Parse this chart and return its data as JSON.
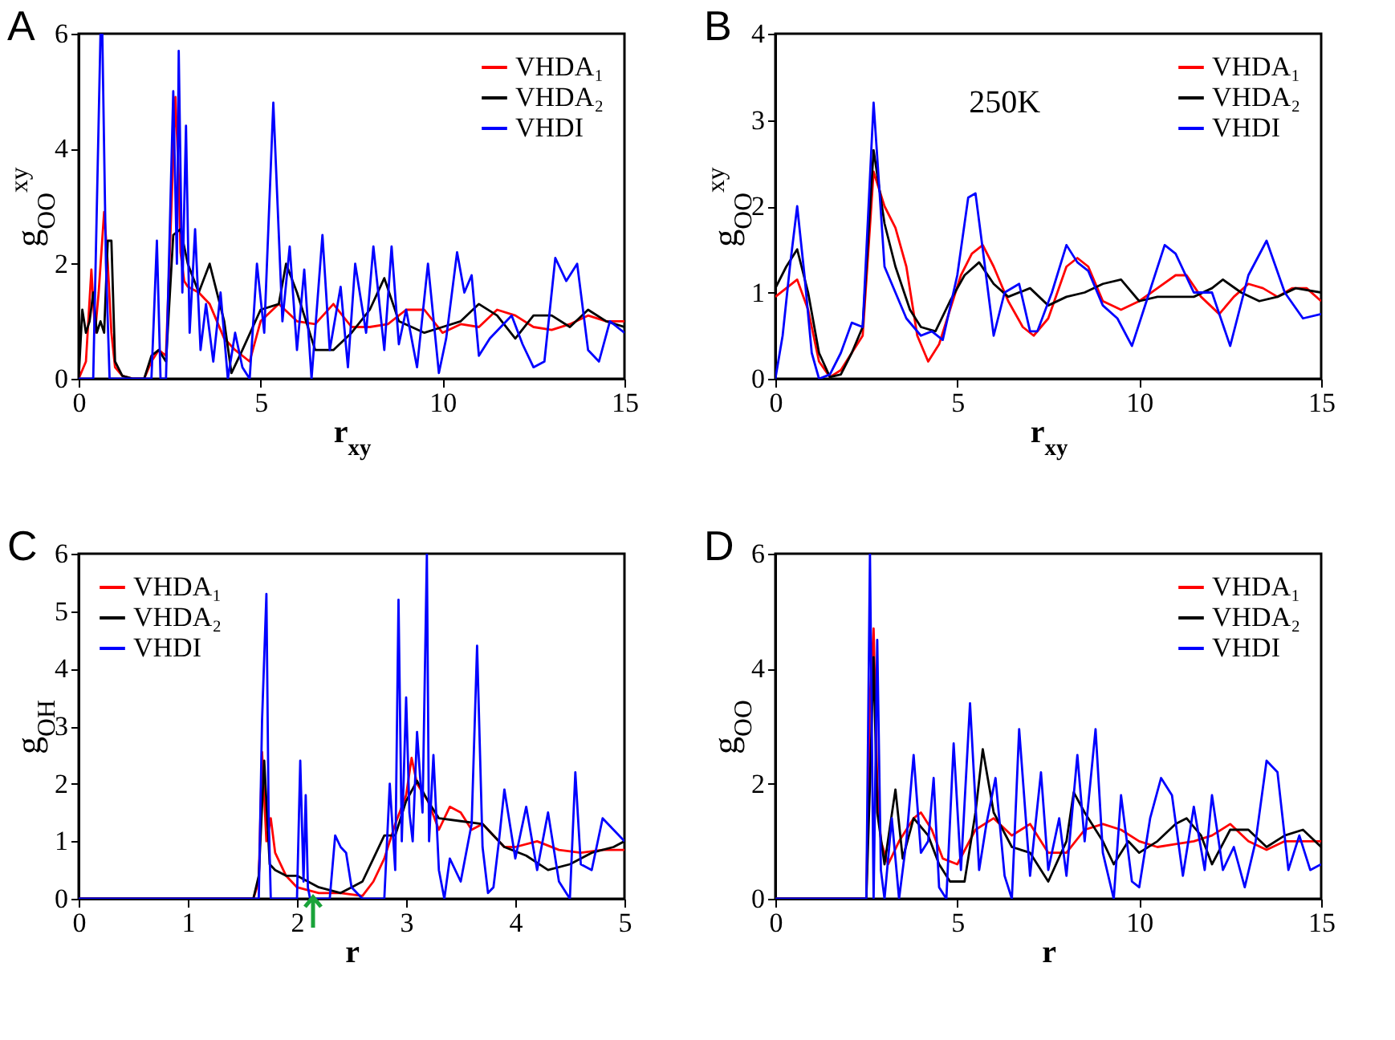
{
  "chart_data": [
    {
      "type": "line",
      "title": "A",
      "xlabel": "r$_{xy}$",
      "ylabel": "g$_{OO}$$^{xy}$",
      "xlim": [
        0,
        15
      ],
      "ylim": [
        0,
        6
      ],
      "xticks": [
        0,
        5,
        10,
        15
      ],
      "yticks": [
        0,
        2,
        4,
        6
      ],
      "legend": "top right",
      "series": [
        {
          "name": "VHDA₁",
          "color": "#ff0000",
          "x": [
            0,
            0.2,
            0.35,
            0.45,
            0.55,
            0.7,
            0.8,
            0.9,
            1.0,
            1.2,
            1.5,
            1.8,
            2.0,
            2.2,
            2.4,
            2.66,
            2.75,
            2.8,
            2.9,
            3.0,
            3.3,
            3.6,
            4.0,
            4.3,
            4.7,
            5.0,
            5.5,
            6.0,
            6.5,
            7.0,
            7.5,
            8.0,
            8.5,
            9.0,
            9.5,
            10.0,
            10.5,
            11.0,
            11.5,
            12.0,
            12.5,
            13.0,
            13.5,
            14.0,
            14.5,
            15
          ],
          "values": [
            0,
            0.3,
            1.9,
            0.8,
            1.5,
            2.9,
            2.0,
            0.8,
            0.2,
            0.05,
            0,
            0,
            0.3,
            0.5,
            0.4,
            4.9,
            3.5,
            2.2,
            1.7,
            1.6,
            1.5,
            1.3,
            0.7,
            0.5,
            0.3,
            1.0,
            1.3,
            1.0,
            0.95,
            1.3,
            0.9,
            0.9,
            0.95,
            1.2,
            1.2,
            0.8,
            0.95,
            0.9,
            1.2,
            1.1,
            0.9,
            0.85,
            0.95,
            1.1,
            1.0,
            1.0
          ]
        },
        {
          "name": "VHDA₂",
          "color": "#000000",
          "x": [
            0,
            0.1,
            0.2,
            0.3,
            0.4,
            0.5,
            0.6,
            0.7,
            0.8,
            0.9,
            1.0,
            1.2,
            1.5,
            1.8,
            2.0,
            2.2,
            2.4,
            2.6,
            2.8,
            3.0,
            3.3,
            3.6,
            4.0,
            4.2,
            4.5,
            5.0,
            5.5,
            5.7,
            6.0,
            6.5,
            7.0,
            7.5,
            8.0,
            8.4,
            8.8,
            9.5,
            10.0,
            10.5,
            11.0,
            11.5,
            12.0,
            12.5,
            13.0,
            13.5,
            14.0,
            14.5,
            15
          ],
          "values": [
            0,
            1.2,
            0.8,
            1.0,
            1.5,
            0.8,
            1.0,
            0.8,
            2.4,
            2.4,
            0.3,
            0.05,
            0,
            0,
            0.4,
            0.5,
            0.3,
            2.5,
            2.6,
            2.0,
            1.5,
            2.0,
            1.0,
            0.1,
            0.5,
            1.2,
            1.3,
            2.0,
            1.5,
            0.5,
            0.5,
            0.8,
            1.2,
            1.75,
            1.0,
            0.8,
            0.9,
            1.0,
            1.3,
            1.1,
            0.7,
            1.1,
            1.1,
            0.9,
            1.2,
            1.0,
            0.9
          ]
        },
        {
          "name": "VHDI",
          "color": "#0000ff",
          "x": [
            0,
            0.4,
            0.5,
            0.6,
            0.65,
            0.75,
            0.85,
            1.0,
            1.5,
            2.0,
            2.15,
            2.25,
            2.4,
            2.6,
            2.7,
            2.75,
            2.85,
            2.95,
            3.05,
            3.2,
            3.35,
            3.5,
            3.7,
            3.9,
            4.1,
            4.3,
            4.5,
            4.7,
            4.9,
            5.1,
            5.35,
            5.6,
            5.8,
            6.0,
            6.2,
            6.4,
            6.7,
            6.9,
            7.2,
            7.4,
            7.6,
            7.9,
            8.1,
            8.4,
            8.6,
            8.8,
            9.0,
            9.3,
            9.6,
            9.9,
            10.1,
            10.4,
            10.6,
            10.8,
            11.0,
            11.3,
            11.6,
            11.9,
            12.2,
            12.5,
            12.8,
            13.1,
            13.4,
            13.7,
            14.0,
            14.3,
            14.6,
            15
          ],
          "values": [
            0,
            0,
            3,
            6,
            6,
            2,
            0,
            0,
            0,
            0,
            2.4,
            0,
            0,
            5,
            2,
            5.7,
            1.5,
            4.4,
            0.8,
            2.6,
            0.5,
            1.3,
            0.3,
            1.5,
            0,
            0.8,
            0.2,
            0,
            2.0,
            0.8,
            4.8,
            1.0,
            2.3,
            0.5,
            1.9,
            0,
            2.5,
            0.5,
            1.6,
            0.2,
            2.0,
            0.8,
            2.3,
            0.5,
            2.3,
            0.6,
            1.2,
            0.2,
            2.0,
            0.1,
            0.7,
            2.2,
            1.5,
            1.8,
            0.4,
            0.7,
            0.9,
            1.1,
            0.6,
            0.2,
            0.3,
            2.1,
            1.7,
            2.0,
            0.5,
            0.3,
            1.0,
            0.8
          ]
        }
      ]
    },
    {
      "type": "line",
      "title": "B",
      "xlabel": "r$_{xy}$",
      "ylabel": "g$_{OO}$$^{xy}$",
      "xlim": [
        0,
        15
      ],
      "ylim": [
        0,
        4
      ],
      "xticks": [
        0,
        5,
        10,
        15
      ],
      "yticks": [
        0,
        1,
        2,
        3,
        4
      ],
      "legend": "top right",
      "annotations": [
        "250K"
      ],
      "series": [
        {
          "name": "VHDA₁",
          "color": "#ff0000",
          "x": [
            0,
            0.3,
            0.6,
            0.9,
            1.2,
            1.5,
            1.8,
            2.1,
            2.4,
            2.7,
            3.0,
            3.3,
            3.6,
            3.9,
            4.2,
            4.5,
            4.8,
            5.1,
            5.4,
            5.7,
            6.0,
            6.4,
            6.8,
            7.1,
            7.5,
            8.0,
            8.3,
            8.6,
            9.0,
            9.5,
            10.0,
            10.5,
            11.0,
            11.3,
            11.7,
            12.2,
            12.6,
            13.0,
            13.4,
            13.8,
            14.2,
            14.6,
            15
          ],
          "values": [
            0.95,
            1.05,
            1.15,
            0.8,
            0.2,
            0.02,
            0.1,
            0.3,
            0.5,
            2.4,
            2.0,
            1.75,
            1.3,
            0.5,
            0.2,
            0.4,
            0.8,
            1.2,
            1.45,
            1.55,
            1.3,
            0.9,
            0.6,
            0.5,
            0.7,
            1.3,
            1.4,
            1.3,
            0.9,
            0.8,
            0.9,
            1.05,
            1.2,
            1.2,
            0.95,
            0.75,
            0.95,
            1.1,
            1.05,
            0.95,
            1.05,
            1.05,
            0.9
          ]
        },
        {
          "name": "VHDA₂",
          "color": "#000000",
          "x": [
            0,
            0.3,
            0.6,
            0.9,
            1.2,
            1.5,
            1.8,
            2.1,
            2.4,
            2.7,
            3.0,
            3.3,
            3.7,
            4.0,
            4.4,
            4.8,
            5.2,
            5.6,
            6.0,
            6.4,
            7.0,
            7.5,
            8.0,
            8.5,
            9.0,
            9.5,
            10.0,
            10.5,
            11.0,
            11.5,
            12.0,
            12.3,
            12.8,
            13.3,
            13.8,
            14.3,
            15
          ],
          "values": [
            1.05,
            1.3,
            1.5,
            1.0,
            0.3,
            0.02,
            0.05,
            0.3,
            0.6,
            2.65,
            1.8,
            1.3,
            0.8,
            0.6,
            0.55,
            0.9,
            1.2,
            1.35,
            1.1,
            0.95,
            1.05,
            0.85,
            0.95,
            1.0,
            1.1,
            1.15,
            0.9,
            0.95,
            0.95,
            0.95,
            1.05,
            1.15,
            1.0,
            0.9,
            0.95,
            1.05,
            1.0
          ]
        },
        {
          "name": "VHDI",
          "color": "#0000ff",
          "x": [
            0,
            0.2,
            0.4,
            0.6,
            0.8,
            1.0,
            1.2,
            1.5,
            1.8,
            2.1,
            2.4,
            2.7,
            3.0,
            3.3,
            3.6,
            4.0,
            4.3,
            4.6,
            5.0,
            5.3,
            5.5,
            5.7,
            6.0,
            6.3,
            6.7,
            7.0,
            7.2,
            7.6,
            8.0,
            8.3,
            8.6,
            9.0,
            9.4,
            9.8,
            10.2,
            10.7,
            11.0,
            11.5,
            12.0,
            12.5,
            13.0,
            13.5,
            14.0,
            14.5,
            15
          ],
          "values": [
            0,
            0.5,
            1.3,
            2.0,
            1.2,
            0.3,
            0,
            0.05,
            0.3,
            0.65,
            0.6,
            3.2,
            1.3,
            1.0,
            0.7,
            0.5,
            0.55,
            0.45,
            1.2,
            2.1,
            2.15,
            1.5,
            0.5,
            1.0,
            1.1,
            0.55,
            0.55,
            1.0,
            1.55,
            1.35,
            1.25,
            0.85,
            0.7,
            0.38,
            0.9,
            1.55,
            1.45,
            1.0,
            1.0,
            0.38,
            1.2,
            1.6,
            1.0,
            0.7,
            0.75
          ]
        }
      ]
    },
    {
      "type": "line",
      "title": "C",
      "xlabel": "r",
      "ylabel": "g$_{OH}$",
      "xlim": [
        0,
        5
      ],
      "ylim": [
        0,
        6
      ],
      "xticks": [
        0,
        1,
        2,
        3,
        4,
        5
      ],
      "yticks": [
        0,
        1,
        2,
        3,
        4,
        5,
        6
      ],
      "legend": "top left",
      "series": [
        {
          "name": "VHDA₁",
          "color": "#ff0000",
          "x": [
            0,
            1.6,
            1.65,
            1.68,
            1.72,
            1.76,
            1.8,
            1.9,
            2.0,
            2.2,
            2.4,
            2.6,
            2.7,
            2.8,
            2.9,
            3.0,
            3.05,
            3.1,
            3.2,
            3.3,
            3.4,
            3.5,
            3.6,
            3.7,
            3.8,
            3.9,
            4.0,
            4.2,
            4.4,
            4.6,
            4.8,
            5
          ],
          "values": [
            0,
            0,
            0.3,
            2.55,
            1.0,
            1.4,
            0.8,
            0.4,
            0.2,
            0.1,
            0.1,
            0.05,
            0.3,
            0.7,
            1.3,
            1.8,
            2.45,
            2.0,
            1.7,
            1.2,
            1.6,
            1.5,
            1.2,
            1.3,
            1.1,
            0.9,
            0.9,
            1.0,
            0.85,
            0.8,
            0.85,
            0.85
          ]
        },
        {
          "name": "VHDA₂",
          "color": "#000000",
          "x": [
            0,
            1.6,
            1.65,
            1.7,
            1.75,
            1.8,
            1.9,
            2.0,
            2.1,
            2.2,
            2.4,
            2.5,
            2.6,
            2.7,
            2.8,
            2.9,
            3.0,
            3.1,
            3.2,
            3.3,
            3.5,
            3.7,
            3.9,
            4.1,
            4.3,
            4.5,
            4.7,
            4.9,
            5
          ],
          "values": [
            0,
            0,
            0.4,
            2.4,
            0.6,
            0.5,
            0.4,
            0.4,
            0.3,
            0.2,
            0.1,
            0.2,
            0.3,
            0.7,
            1.1,
            1.1,
            1.7,
            2.05,
            1.7,
            1.4,
            1.35,
            1.3,
            0.9,
            0.75,
            0.5,
            0.6,
            0.8,
            0.9,
            1.0
          ]
        },
        {
          "name": "VHDI",
          "color": "#0000ff",
          "x": [
            0,
            1.65,
            1.68,
            1.72,
            1.74,
            1.76,
            1.8,
            2.0,
            2.03,
            2.06,
            2.08,
            2.1,
            2.12,
            2.2,
            2.3,
            2.35,
            2.4,
            2.45,
            2.5,
            2.6,
            2.8,
            2.85,
            2.9,
            2.93,
            2.96,
            3.0,
            3.03,
            3.06,
            3.1,
            3.15,
            3.19,
            3.21,
            3.25,
            3.3,
            3.35,
            3.4,
            3.5,
            3.6,
            3.65,
            3.7,
            3.75,
            3.8,
            3.85,
            3.9,
            4.0,
            4.1,
            4.2,
            4.3,
            4.4,
            4.5,
            4.55,
            4.6,
            4.7,
            4.8,
            4.9,
            5
          ],
          "values": [
            0,
            0,
            3.1,
            5.3,
            1.5,
            0,
            0,
            0,
            2.4,
            0.3,
            1.8,
            0.2,
            0,
            0,
            0,
            1.1,
            0.9,
            0.8,
            0.2,
            0,
            0,
            2.0,
            0.5,
            5.2,
            1.0,
            3.5,
            1.5,
            1.0,
            2.9,
            1.5,
            6,
            1.0,
            2.5,
            0.5,
            0,
            0.7,
            0.3,
            1.3,
            4.4,
            0.9,
            0.1,
            0.2,
            1.0,
            1.9,
            0.7,
            1.6,
            0.5,
            1.5,
            0.3,
            0,
            2.2,
            0.6,
            0.5,
            1.4,
            1.2,
            1.0
          ]
        }
      ]
    },
    {
      "type": "line",
      "title": "D",
      "xlabel": "r",
      "ylabel": "g$_{OO}$",
      "xlim": [
        0,
        15
      ],
      "ylim": [
        0,
        6
      ],
      "xticks": [
        0,
        5,
        10,
        15
      ],
      "yticks": [
        0,
        2,
        4,
        6
      ],
      "legend": "top right",
      "series": [
        {
          "name": "VHDA₁",
          "color": "#ff0000",
          "x": [
            0,
            2.5,
            2.6,
            2.7,
            2.8,
            2.9,
            3.1,
            3.4,
            3.8,
            4.0,
            4.3,
            4.6,
            5.0,
            5.5,
            6.0,
            6.5,
            7.0,
            7.5,
            8.0,
            8.5,
            9.0,
            9.5,
            10.0,
            10.5,
            11.0,
            11.5,
            12.0,
            12.5,
            13.0,
            13.5,
            14.0,
            14.5,
            15
          ],
          "values": [
            0,
            0,
            3.5,
            4.7,
            2.0,
            1.0,
            0.6,
            1.0,
            1.4,
            1.5,
            1.2,
            0.7,
            0.6,
            1.2,
            1.4,
            1.1,
            1.3,
            0.8,
            0.8,
            1.2,
            1.3,
            1.2,
            1.0,
            0.9,
            0.95,
            1.0,
            1.1,
            1.3,
            1.0,
            0.85,
            1.0,
            1.0,
            1.0
          ]
        },
        {
          "name": "VHDA₂",
          "color": "#000000",
          "x": [
            0,
            2.5,
            2.6,
            2.7,
            2.8,
            3.0,
            3.3,
            3.5,
            3.8,
            4.2,
            4.5,
            4.8,
            5.2,
            5.5,
            5.7,
            6.0,
            6.5,
            7.0,
            7.5,
            8.0,
            8.2,
            8.5,
            9.0,
            9.3,
            9.7,
            10.0,
            10.5,
            11.0,
            11.3,
            11.7,
            12.0,
            12.5,
            13.0,
            13.5,
            14.0,
            14.5,
            15
          ],
          "values": [
            0,
            0,
            2.0,
            4.2,
            1.5,
            0.6,
            1.9,
            0.7,
            1.4,
            1.1,
            0.6,
            0.3,
            0.3,
            1.5,
            2.6,
            1.5,
            0.9,
            0.8,
            0.3,
            1.0,
            1.85,
            1.5,
            1.0,
            0.6,
            1.0,
            0.8,
            1.0,
            1.3,
            1.4,
            1.1,
            0.6,
            1.2,
            1.2,
            0.9,
            1.1,
            1.2,
            0.9
          ]
        },
        {
          "name": "VHDI",
          "color": "#0000ff",
          "x": [
            0,
            2.5,
            2.55,
            2.6,
            2.7,
            2.8,
            2.9,
            3.0,
            3.2,
            3.4,
            3.6,
            3.8,
            4.0,
            4.2,
            4.35,
            4.5,
            4.7,
            4.9,
            5.1,
            5.35,
            5.6,
            5.8,
            6.05,
            6.3,
            6.5,
            6.7,
            7.0,
            7.3,
            7.5,
            7.8,
            8.0,
            8.3,
            8.5,
            8.8,
            9.0,
            9.3,
            9.5,
            9.8,
            10.0,
            10.3,
            10.6,
            10.9,
            11.2,
            11.5,
            11.8,
            12.0,
            12.3,
            12.6,
            12.9,
            13.2,
            13.5,
            13.8,
            14.1,
            14.4,
            14.7,
            15
          ],
          "values": [
            0,
            0,
            3,
            6,
            0,
            4.5,
            0.5,
            0,
            1.4,
            0,
            1.0,
            2.5,
            0.8,
            1.0,
            2.1,
            0.2,
            0,
            2.7,
            0.5,
            3.4,
            0.5,
            1.3,
            2.1,
            0.4,
            0,
            2.95,
            0.4,
            2.2,
            0.5,
            1.4,
            0.4,
            2.5,
            1.0,
            2.95,
            0.8,
            0,
            1.8,
            0.3,
            0.2,
            1.4,
            2.1,
            1.8,
            0.4,
            1.6,
            0.5,
            1.8,
            0.5,
            0.9,
            0.2,
            1.0,
            2.4,
            2.2,
            0.5,
            1.1,
            0.5,
            0.6
          ]
        }
      ]
    }
  ]
}
